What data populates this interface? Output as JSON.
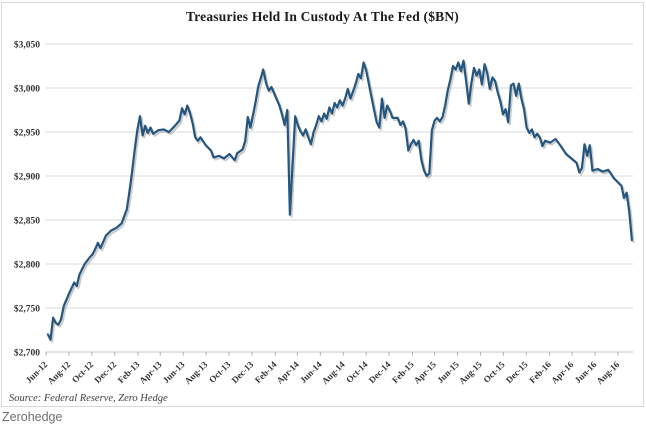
{
  "footer": {
    "watermark": "Zerohedge"
  },
  "chart_data": {
    "type": "line",
    "title": "Treasuries Held In Custody At The Fed ($BN)",
    "source_note": "Source: Federal Reserve, Zero Hedge",
    "grid": true,
    "legend": "none",
    "grid_color": "#dadada",
    "axis_color": "#c9c9c9",
    "tick_color": "#ababab",
    "label_color": "#333333",
    "ylim": [
      2700,
      3050
    ],
    "x_range": [
      "2012-06-01",
      "2016-09-10"
    ],
    "y_ticks": [
      {
        "value": 2700,
        "label": "$2,700"
      },
      {
        "value": 2750,
        "label": "$2,750"
      },
      {
        "value": 2800,
        "label": "$2,800"
      },
      {
        "value": 2850,
        "label": "$2,850"
      },
      {
        "value": 2900,
        "label": "$2,900"
      },
      {
        "value": 2950,
        "label": "$2,950"
      },
      {
        "value": 3000,
        "label": "$3,000"
      },
      {
        "value": 3050,
        "label": "$3,050"
      }
    ],
    "x_ticks": [
      {
        "date": "2012-06-01",
        "label": "Jun-12"
      },
      {
        "date": "2012-08-01",
        "label": "Aug-12"
      },
      {
        "date": "2012-10-01",
        "label": "Oct-12"
      },
      {
        "date": "2012-12-01",
        "label": "Dec-12"
      },
      {
        "date": "2013-02-01",
        "label": "Feb-13"
      },
      {
        "date": "2013-04-01",
        "label": "Apr-13"
      },
      {
        "date": "2013-06-01",
        "label": "Jun-13"
      },
      {
        "date": "2013-08-01",
        "label": "Aug-13"
      },
      {
        "date": "2013-10-01",
        "label": "Oct-13"
      },
      {
        "date": "2013-12-01",
        "label": "Dec-13"
      },
      {
        "date": "2014-02-01",
        "label": "Feb-14"
      },
      {
        "date": "2014-04-01",
        "label": "Apr-14"
      },
      {
        "date": "2014-06-01",
        "label": "Jun-14"
      },
      {
        "date": "2014-08-01",
        "label": "Aug-14"
      },
      {
        "date": "2014-10-01",
        "label": "Oct-14"
      },
      {
        "date": "2014-12-01",
        "label": "Dec-14"
      },
      {
        "date": "2015-02-01",
        "label": "Feb-15"
      },
      {
        "date": "2015-04-01",
        "label": "Apr-15"
      },
      {
        "date": "2015-06-01",
        "label": "Jun-15"
      },
      {
        "date": "2015-08-01",
        "label": "Aug-15"
      },
      {
        "date": "2015-10-01",
        "label": "Oct-15"
      },
      {
        "date": "2015-12-01",
        "label": "Dec-15"
      },
      {
        "date": "2016-02-01",
        "label": "Feb-16"
      },
      {
        "date": "2016-04-01",
        "label": "Apr-16"
      },
      {
        "date": "2016-06-01",
        "label": "Jun-16"
      },
      {
        "date": "2016-08-01",
        "label": "Aug-16"
      }
    ],
    "series": [
      {
        "name": "Treasuries held in custody at the Fed ($BN)",
        "color": "#25567f",
        "shadow_color": "#9a9a9a",
        "points": [
          [
            "2012-06-06",
            2720
          ],
          [
            "2012-06-13",
            2714
          ],
          [
            "2012-06-20",
            2739
          ],
          [
            "2012-06-27",
            2733
          ],
          [
            "2012-07-04",
            2731
          ],
          [
            "2012-07-11",
            2737
          ],
          [
            "2012-07-18",
            2752
          ],
          [
            "2012-08-01",
            2766
          ],
          [
            "2012-08-15",
            2779
          ],
          [
            "2012-08-22",
            2775
          ],
          [
            "2012-08-29",
            2788
          ],
          [
            "2012-09-12",
            2800
          ],
          [
            "2012-09-26",
            2808
          ],
          [
            "2012-10-03",
            2811
          ],
          [
            "2012-10-10",
            2817
          ],
          [
            "2012-10-17",
            2824
          ],
          [
            "2012-10-24",
            2818
          ],
          [
            "2012-11-07",
            2832
          ],
          [
            "2012-11-21",
            2838
          ],
          [
            "2012-12-05",
            2841
          ],
          [
            "2012-12-19",
            2846
          ],
          [
            "2013-01-02",
            2862
          ],
          [
            "2013-01-09",
            2882
          ],
          [
            "2013-01-16",
            2905
          ],
          [
            "2013-01-23",
            2930
          ],
          [
            "2013-01-30",
            2952
          ],
          [
            "2013-02-06",
            2968
          ],
          [
            "2013-02-13",
            2946
          ],
          [
            "2013-02-20",
            2957
          ],
          [
            "2013-02-27",
            2949
          ],
          [
            "2013-03-06",
            2955
          ],
          [
            "2013-03-13",
            2948
          ],
          [
            "2013-03-27",
            2952
          ],
          [
            "2013-04-10",
            2953
          ],
          [
            "2013-04-24",
            2950
          ],
          [
            "2013-05-08",
            2956
          ],
          [
            "2013-05-22",
            2963
          ],
          [
            "2013-05-29",
            2977
          ],
          [
            "2013-06-05",
            2970
          ],
          [
            "2013-06-12",
            2980
          ],
          [
            "2013-06-19",
            2972
          ],
          [
            "2013-06-26",
            2960
          ],
          [
            "2013-07-03",
            2944
          ],
          [
            "2013-07-10",
            2940
          ],
          [
            "2013-07-17",
            2944
          ],
          [
            "2013-07-31",
            2935
          ],
          [
            "2013-08-14",
            2929
          ],
          [
            "2013-08-21",
            2921
          ],
          [
            "2013-09-04",
            2923
          ],
          [
            "2013-09-18",
            2920
          ],
          [
            "2013-10-02",
            2925
          ],
          [
            "2013-10-16",
            2918
          ],
          [
            "2013-10-23",
            2926
          ],
          [
            "2013-11-06",
            2930
          ],
          [
            "2013-11-13",
            2940
          ],
          [
            "2013-11-20",
            2967
          ],
          [
            "2013-11-27",
            2955
          ],
          [
            "2013-12-04",
            2970
          ],
          [
            "2013-12-11",
            2985
          ],
          [
            "2013-12-18",
            3002
          ],
          [
            "2013-12-25",
            3012
          ],
          [
            "2013-12-31",
            3021
          ],
          [
            "2014-01-08",
            3005
          ],
          [
            "2014-01-15",
            2997
          ],
          [
            "2014-01-22",
            3001
          ],
          [
            "2014-01-29",
            2994
          ],
          [
            "2014-02-12",
            2980
          ],
          [
            "2014-02-19",
            2970
          ],
          [
            "2014-02-26",
            2958
          ],
          [
            "2014-03-05",
            2975
          ],
          [
            "2014-03-12",
            2856
          ],
          [
            "2014-03-19",
            2912
          ],
          [
            "2014-03-26",
            2968
          ],
          [
            "2014-04-02",
            2958
          ],
          [
            "2014-04-09",
            2951
          ],
          [
            "2014-04-16",
            2946
          ],
          [
            "2014-04-23",
            2953
          ],
          [
            "2014-04-30",
            2944
          ],
          [
            "2014-05-07",
            2936
          ],
          [
            "2014-05-14",
            2950
          ],
          [
            "2014-05-21",
            2958
          ],
          [
            "2014-05-28",
            2968
          ],
          [
            "2014-06-04",
            2962
          ],
          [
            "2014-06-11",
            2971
          ],
          [
            "2014-06-18",
            2965
          ],
          [
            "2014-06-25",
            2978
          ],
          [
            "2014-07-02",
            2971
          ],
          [
            "2014-07-09",
            2983
          ],
          [
            "2014-07-16",
            2978
          ],
          [
            "2014-07-23",
            2986
          ],
          [
            "2014-07-30",
            2980
          ],
          [
            "2014-08-06",
            2988
          ],
          [
            "2014-08-13",
            2999
          ],
          [
            "2014-08-20",
            2988
          ],
          [
            "2014-08-27",
            2996
          ],
          [
            "2014-09-03",
            3005
          ],
          [
            "2014-09-10",
            3016
          ],
          [
            "2014-09-17",
            3011
          ],
          [
            "2014-09-24",
            3029
          ],
          [
            "2014-10-01",
            3020
          ],
          [
            "2014-10-08",
            3005
          ],
          [
            "2014-10-15",
            2990
          ],
          [
            "2014-10-22",
            2975
          ],
          [
            "2014-10-29",
            2961
          ],
          [
            "2014-11-05",
            2955
          ],
          [
            "2014-11-12",
            2988
          ],
          [
            "2014-11-19",
            2966
          ],
          [
            "2014-11-26",
            2980
          ],
          [
            "2014-12-03",
            2974
          ],
          [
            "2014-12-10",
            2966
          ],
          [
            "2014-12-24",
            2966
          ],
          [
            "2014-12-31",
            2958
          ],
          [
            "2015-01-07",
            2962
          ],
          [
            "2015-01-14",
            2954
          ],
          [
            "2015-01-21",
            2929
          ],
          [
            "2015-01-28",
            2936
          ],
          [
            "2015-02-04",
            2941
          ],
          [
            "2015-02-11",
            2935
          ],
          [
            "2015-02-18",
            2940
          ],
          [
            "2015-02-25",
            2918
          ],
          [
            "2015-03-04",
            2906
          ],
          [
            "2015-03-11",
            2900
          ],
          [
            "2015-03-18",
            2903
          ],
          [
            "2015-03-25",
            2952
          ],
          [
            "2015-04-01",
            2963
          ],
          [
            "2015-04-08",
            2966
          ],
          [
            "2015-04-15",
            2962
          ],
          [
            "2015-04-22",
            2967
          ],
          [
            "2015-04-29",
            2980
          ],
          [
            "2015-05-06",
            2997
          ],
          [
            "2015-05-13",
            3010
          ],
          [
            "2015-05-20",
            3025
          ],
          [
            "2015-05-27",
            3021
          ],
          [
            "2015-06-03",
            3029
          ],
          [
            "2015-06-10",
            3019
          ],
          [
            "2015-06-17",
            3031
          ],
          [
            "2015-06-24",
            3008
          ],
          [
            "2015-07-01",
            2982
          ],
          [
            "2015-07-08",
            3006
          ],
          [
            "2015-07-15",
            3023
          ],
          [
            "2015-07-22",
            3014
          ],
          [
            "2015-07-29",
            3021
          ],
          [
            "2015-08-05",
            3004
          ],
          [
            "2015-08-12",
            3027
          ],
          [
            "2015-08-19",
            3017
          ],
          [
            "2015-08-26",
            2999
          ],
          [
            "2015-09-02",
            3012
          ],
          [
            "2015-09-09",
            3008
          ],
          [
            "2015-09-16",
            2995
          ],
          [
            "2015-09-23",
            2985
          ],
          [
            "2015-09-30",
            2970
          ],
          [
            "2015-10-07",
            2976
          ],
          [
            "2015-10-14",
            2961
          ],
          [
            "2015-10-21",
            3003
          ],
          [
            "2015-10-28",
            3005
          ],
          [
            "2015-11-04",
            2991
          ],
          [
            "2015-11-11",
            3005
          ],
          [
            "2015-11-18",
            2988
          ],
          [
            "2015-11-25",
            2976
          ],
          [
            "2015-12-02",
            2955
          ],
          [
            "2015-12-09",
            2949
          ],
          [
            "2015-12-16",
            2953
          ],
          [
            "2015-12-23",
            2944
          ],
          [
            "2015-12-30",
            2948
          ],
          [
            "2016-01-06",
            2944
          ],
          [
            "2016-01-13",
            2934
          ],
          [
            "2016-01-20",
            2940
          ],
          [
            "2016-02-03",
            2938
          ],
          [
            "2016-02-17",
            2942
          ],
          [
            "2016-03-02",
            2934
          ],
          [
            "2016-03-16",
            2925
          ],
          [
            "2016-03-30",
            2920
          ],
          [
            "2016-04-13",
            2915
          ],
          [
            "2016-04-20",
            2904
          ],
          [
            "2016-04-27",
            2909
          ],
          [
            "2016-05-04",
            2936
          ],
          [
            "2016-05-11",
            2923
          ],
          [
            "2016-05-18",
            2935
          ],
          [
            "2016-05-25",
            2906
          ],
          [
            "2016-06-08",
            2908
          ],
          [
            "2016-06-22",
            2905
          ],
          [
            "2016-07-06",
            2907
          ],
          [
            "2016-07-13",
            2903
          ],
          [
            "2016-07-20",
            2898
          ],
          [
            "2016-08-03",
            2892
          ],
          [
            "2016-08-10",
            2889
          ],
          [
            "2016-08-17",
            2875
          ],
          [
            "2016-08-24",
            2881
          ],
          [
            "2016-08-31",
            2860
          ],
          [
            "2016-09-07",
            2827
          ]
        ]
      }
    ]
  }
}
